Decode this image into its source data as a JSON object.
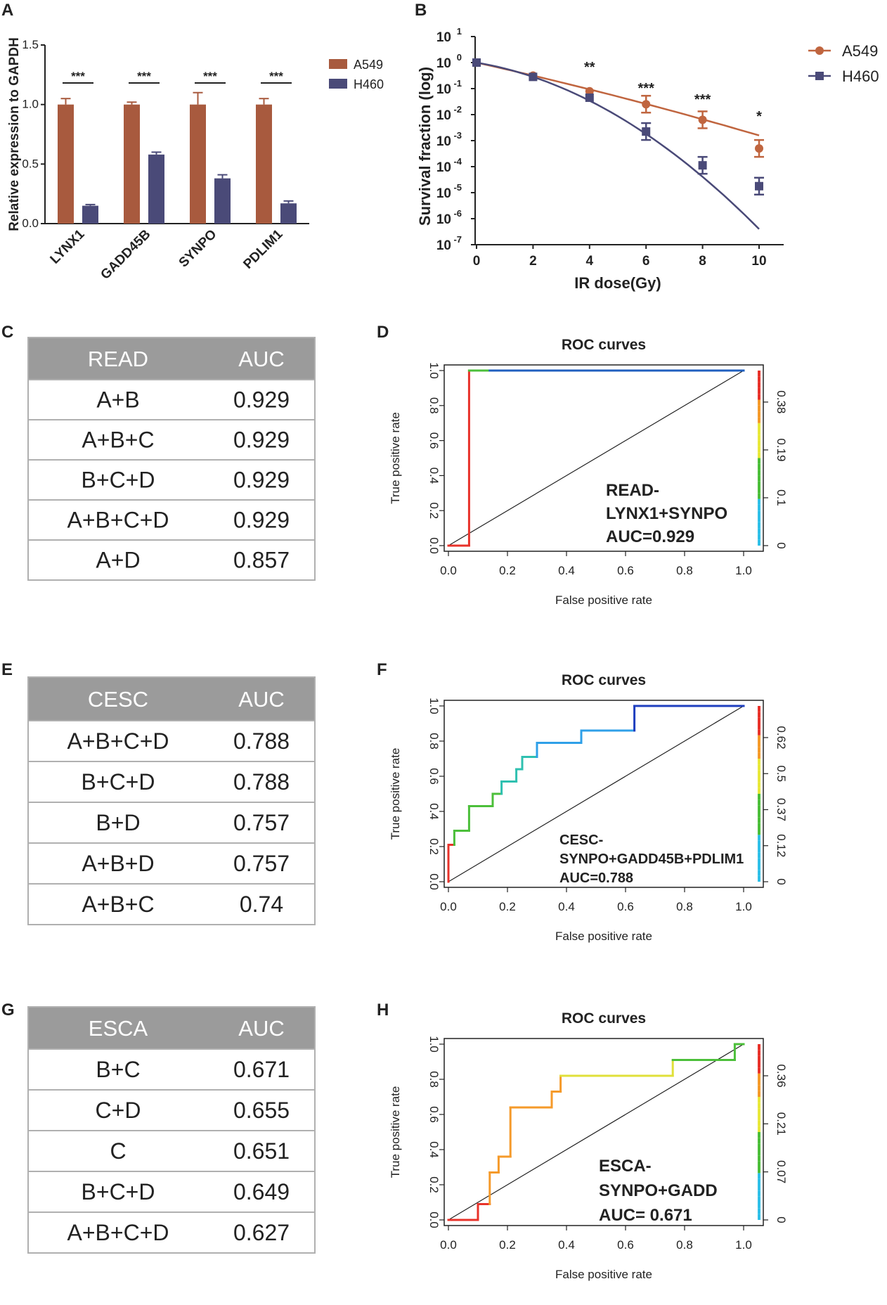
{
  "panel_letters": {
    "A": "A",
    "B": "B",
    "C": "C",
    "D": "D",
    "E": "E",
    "F": "F",
    "G": "G",
    "H": "H"
  },
  "chart_data": [
    {
      "panel": "A",
      "type": "bar",
      "title": "",
      "xlabel": "",
      "ylabel": "Relative expression to GAPDH",
      "ylim": [
        0,
        1.5
      ],
      "yticks": [
        "0.0",
        "0.5",
        "1.0",
        "1.5"
      ],
      "categories": [
        "LYNX1",
        "GADD45B",
        "SYNPO",
        "PDLIM1"
      ],
      "series": [
        {
          "name": "A549",
          "color": "#a85a3e",
          "values": [
            1.0,
            1.0,
            1.0,
            1.0
          ],
          "errors": [
            0.05,
            0.02,
            0.1,
            0.05
          ]
        },
        {
          "name": "H460",
          "color": "#4a4a78",
          "values": [
            0.15,
            0.58,
            0.38,
            0.17
          ],
          "errors": [
            0.01,
            0.02,
            0.03,
            0.02
          ]
        }
      ],
      "significance": [
        "***",
        "***",
        "***",
        "***"
      ]
    },
    {
      "panel": "B",
      "type": "line",
      "title": "",
      "xlabel": "IR dose(Gy)",
      "ylabel": "Survival fraction (log)",
      "y_scale": "log",
      "ylim_exponent": [
        -7,
        1
      ],
      "x": [
        0,
        2,
        4,
        6,
        8,
        10
      ],
      "series": [
        {
          "name": "A549",
          "color": "#c0653f",
          "marker": "circle",
          "log10_values": [
            0,
            -0.5,
            -1.1,
            -1.6,
            -2.2,
            -3.3
          ],
          "fit_end_log10": -2.8
        },
        {
          "name": "H460",
          "color": "#4a4a78",
          "marker": "square",
          "log10_values": [
            0,
            -0.55,
            -1.35,
            -2.65,
            -3.95,
            -4.75
          ],
          "fit_end_log10": -6.4
        }
      ],
      "significance": {
        "4": "**",
        "6": "***",
        "8": "***",
        "10": "*"
      }
    },
    {
      "panel": "D",
      "type": "line",
      "title": "ROC curves",
      "xlabel": "False positive rate",
      "ylabel": "True positive rate",
      "annotation": [
        "READ-",
        "LYNX1+SYNPO",
        "AUC=0.929"
      ],
      "colorbar_ticks": [
        "0",
        "0.1",
        "0.19",
        "0.38"
      ],
      "roc_points": [
        [
          0,
          0
        ],
        [
          0.07,
          0
        ],
        [
          0.07,
          1.0
        ],
        [
          0.14,
          1.0
        ],
        [
          1.0,
          1.0
        ]
      ]
    },
    {
      "panel": "F",
      "type": "line",
      "title": "ROC curves",
      "xlabel": "False positive rate",
      "ylabel": "True positive rate",
      "annotation": [
        "CESC-",
        "SYNPO+GADD45B+PDLIM1",
        "AUC=0.788"
      ],
      "colorbar_ticks": [
        "0",
        "0.12",
        "0.37",
        "0.5",
        "0.62"
      ],
      "roc_points": [
        [
          0,
          0
        ],
        [
          0,
          0.21
        ],
        [
          0.02,
          0.21
        ],
        [
          0.02,
          0.29
        ],
        [
          0.07,
          0.29
        ],
        [
          0.07,
          0.43
        ],
        [
          0.15,
          0.43
        ],
        [
          0.15,
          0.5
        ],
        [
          0.18,
          0.5
        ],
        [
          0.18,
          0.57
        ],
        [
          0.23,
          0.57
        ],
        [
          0.23,
          0.64
        ],
        [
          0.25,
          0.64
        ],
        [
          0.25,
          0.71
        ],
        [
          0.3,
          0.71
        ],
        [
          0.3,
          0.79
        ],
        [
          0.45,
          0.79
        ],
        [
          0.45,
          0.86
        ],
        [
          0.63,
          0.86
        ],
        [
          0.63,
          1.0
        ],
        [
          1.0,
          1.0
        ]
      ]
    },
    {
      "panel": "H",
      "type": "line",
      "title": "ROC curves",
      "xlabel": "False positive rate",
      "ylabel": "True positive rate",
      "annotation": [
        "ESCA-",
        "SYNPO+GADD",
        "AUC= 0.671"
      ],
      "colorbar_ticks": [
        "0",
        "0.07",
        "0.21",
        "0.36"
      ],
      "roc_points": [
        [
          0,
          0
        ],
        [
          0.1,
          0
        ],
        [
          0.1,
          0.09
        ],
        [
          0.14,
          0.09
        ],
        [
          0.14,
          0.27
        ],
        [
          0.17,
          0.27
        ],
        [
          0.17,
          0.36
        ],
        [
          0.21,
          0.36
        ],
        [
          0.21,
          0.64
        ],
        [
          0.35,
          0.64
        ],
        [
          0.35,
          0.73
        ],
        [
          0.38,
          0.73
        ],
        [
          0.38,
          0.82
        ],
        [
          0.76,
          0.82
        ],
        [
          0.76,
          0.91
        ],
        [
          0.97,
          0.91
        ],
        [
          0.97,
          1.0
        ],
        [
          1.0,
          1.0
        ]
      ]
    },
    {
      "panel": "C",
      "type": "table",
      "header": [
        "READ",
        "AUC"
      ],
      "rows": [
        [
          "A+B",
          "0.929"
        ],
        [
          "A+B+C",
          "0.929"
        ],
        [
          "B+C+D",
          "0.929"
        ],
        [
          "A+B+C+D",
          "0.929"
        ],
        [
          "A+D",
          "0.857"
        ]
      ]
    },
    {
      "panel": "E",
      "type": "table",
      "header": [
        "CESC",
        "AUC"
      ],
      "rows": [
        [
          "A+B+C+D",
          "0.788"
        ],
        [
          "B+C+D",
          "0.788"
        ],
        [
          "B+D",
          "0.757"
        ],
        [
          "A+B+D",
          "0.757"
        ],
        [
          "A+B+C",
          "0.74"
        ]
      ]
    },
    {
      "panel": "G",
      "type": "table",
      "header": [
        "ESCA",
        "AUC"
      ],
      "rows": [
        [
          "B+C",
          "0.671"
        ],
        [
          "C+D",
          "0.655"
        ],
        [
          "C",
          "0.651"
        ],
        [
          "B+C+D",
          "0.649"
        ],
        [
          "A+B+C+D",
          "0.627"
        ]
      ]
    }
  ],
  "roc_axis_ticks": [
    "0.0",
    "0.2",
    "0.4",
    "0.6",
    "0.8",
    "1.0"
  ],
  "colors": {
    "table_header": "#9b9b9b",
    "table_border": "#b0b0b0"
  }
}
